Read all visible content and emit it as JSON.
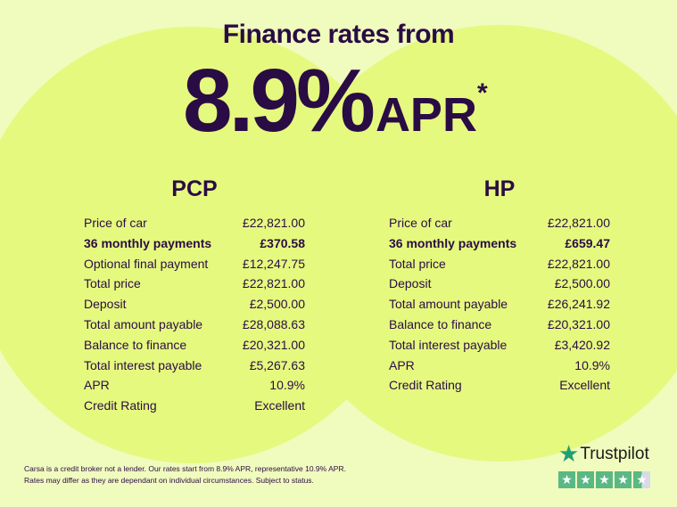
{
  "header": {
    "title": "Finance rates from",
    "rate": "8.9%",
    "apr": "APR",
    "asterisk": "*"
  },
  "pcp": {
    "title": "PCP",
    "rows": [
      {
        "label": "Price of car",
        "value": "£22,821.00"
      },
      {
        "label": "36 monthly payments",
        "value": "£370.58",
        "bold": true
      },
      {
        "label": "Optional final payment",
        "value": "£12,247.75"
      },
      {
        "label": "Total price",
        "value": "£22,821.00"
      },
      {
        "label": "Deposit",
        "value": "£2,500.00"
      },
      {
        "label": "Total amount payable",
        "value": "£28,088.63"
      },
      {
        "label": "Balance to finance",
        "value": "£20,321.00"
      },
      {
        "label": "Total interest payable",
        "value": "£5,267.63"
      },
      {
        "label": "APR",
        "value": "10.9%"
      },
      {
        "label": "Credit Rating",
        "value": "Excellent"
      }
    ]
  },
  "hp": {
    "title": "HP",
    "rows": [
      {
        "label": "Price of car",
        "value": "£22,821.00"
      },
      {
        "label": "36 monthly payments",
        "value": "£659.47",
        "bold": true
      },
      {
        "label": "Total price",
        "value": "£22,821.00"
      },
      {
        "label": "Deposit",
        "value": "£2,500.00"
      },
      {
        "label": "Total amount payable",
        "value": "£26,241.92"
      },
      {
        "label": "Balance to finance",
        "value": "£20,321.00"
      },
      {
        "label": "Total interest payable",
        "value": "£3,420.92"
      },
      {
        "label": "APR",
        "value": "10.9%"
      },
      {
        "label": "Credit Rating",
        "value": "Excellent"
      }
    ]
  },
  "disclaimer": [
    "Carsa is a credit broker not a lender. Our rates start from 8.9% APR, representative 10.9% APR.",
    "Rates may differ as they are dependant on individual circumstances. Subject to status."
  ],
  "trustpilot": {
    "label": "Trustpilot",
    "rating": 4.5,
    "max": 5
  },
  "colors": {
    "text": "#2a0c44",
    "background": "#f0fbbe",
    "circle": "#e5f97f",
    "trustpilot": "#1fa072"
  }
}
